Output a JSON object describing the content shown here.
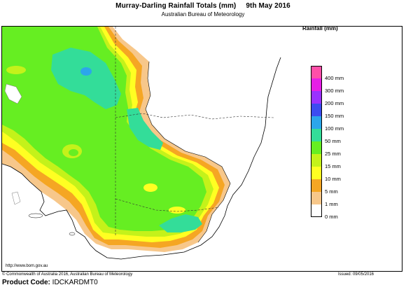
{
  "header": {
    "title": "Murray-Darling Rainfall Totals (mm)",
    "date": "9th May 2016",
    "subtitle": "Australian Bureau of Meteorology"
  },
  "map": {
    "url": "http://www.bom.gov.au",
    "regions": {
      "sea": "#ffffff",
      "land_outside_basin": "#ffffff",
      "lake": "#ffffff"
    }
  },
  "legend": {
    "title": "Rainfall (mm)",
    "items": [
      {
        "label": "400 mm",
        "color": "#ff4fa8"
      },
      {
        "label": "300 mm",
        "color": "#e61ee6"
      },
      {
        "label": "200 mm",
        "color": "#9a32ff"
      },
      {
        "label": "150 mm",
        "color": "#3c4cf0"
      },
      {
        "label": "100 mm",
        "color": "#2ca6ea"
      },
      {
        "label": "50 mm",
        "color": "#33dd99"
      },
      {
        "label": "25 mm",
        "color": "#66ee22"
      },
      {
        "label": "15 mm",
        "color": "#c4f21a"
      },
      {
        "label": "10 mm",
        "color": "#ffff22"
      },
      {
        "label": "5 mm",
        "color": "#f5a623"
      },
      {
        "label": "1 mm",
        "color": "#f7c78a"
      },
      {
        "label": "0 mm",
        "color": "#ffffff"
      }
    ]
  },
  "footer": {
    "copyright": "© Commonwealth of Australia 2016, Australian Bureau of Meteorology",
    "issued": "Issued: 09/05/2016",
    "product_label": "Product Code:",
    "product_code": "IDCKARDMT0"
  }
}
